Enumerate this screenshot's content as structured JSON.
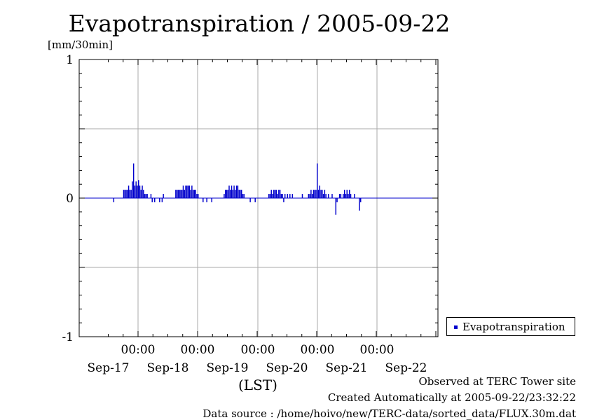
{
  "title": "Evapotranspiration / 2005-09-22",
  "unit": "[mm/30min]",
  "xlabel": "(LST)",
  "legend": {
    "label": "Evapotranspiration",
    "color": "#0000cc"
  },
  "footer": {
    "observed": "Observed at TERC Tower site",
    "created": "Created Automatically at 2005-09-22/23:32:22",
    "source": "Data source : /home/hoivo/new/TERC-data/sorted_data/FLUX.30m.dat"
  },
  "chart_data": {
    "type": "bar",
    "title": "Evapotranspiration / 2005-09-22",
    "ylabel": "[mm/30min]",
    "xlabel": "(LST)",
    "ylim": [
      -1,
      1
    ],
    "yticks": [
      1,
      0,
      -1
    ],
    "grid": true,
    "legend_position": "right",
    "x_start": "2005-09-16 12:00",
    "x_end": "2005-09-22 24:00",
    "x_step_minutes": 30,
    "time_ticks": [
      "00:00",
      "00:00",
      "00:00",
      "00:00",
      "00:00"
    ],
    "date_ticks": [
      "Sep-17",
      "Sep-18",
      "Sep-19",
      "Sep-20",
      "Sep-21",
      "Sep-22"
    ],
    "series": [
      {
        "name": "Evapotranspiration",
        "color": "#0000cc",
        "values": [
          0,
          0,
          0,
          0,
          -0.03,
          0,
          0,
          0,
          0,
          0,
          0,
          0,
          0.06,
          0.06,
          0.06,
          0.06,
          0.09,
          0.06,
          0.06,
          0.12,
          0.25,
          0.09,
          0.12,
          0.09,
          0.13,
          0.09,
          0.06,
          0.09,
          0.06,
          0.03,
          0.03,
          0.03,
          0,
          0,
          0.03,
          -0.03,
          0,
          -0.03,
          0,
          0,
          0,
          -0.03,
          0,
          -0.03,
          0.03,
          0,
          0,
          0,
          0,
          0,
          0,
          0,
          0,
          0,
          0.06,
          0.06,
          0.06,
          0.06,
          0.06,
          0.06,
          0.09,
          0.06,
          0.09,
          0.09,
          0.09,
          0.09,
          0.06,
          0.09,
          0.06,
          0.06,
          0.06,
          0.03,
          0.03,
          0,
          0,
          0,
          -0.03,
          0,
          0,
          -0.03,
          0,
          0,
          0,
          -0.03,
          0,
          0,
          0,
          0,
          0,
          0,
          0,
          0,
          0,
          0.03,
          0.06,
          0.06,
          0.06,
          0.09,
          0.06,
          0.09,
          0.06,
          0.09,
          0.06,
          0.09,
          0.09,
          0.06,
          0.06,
          0.06,
          0.03,
          0.03,
          0,
          0,
          0,
          0,
          -0.03,
          0,
          0,
          0,
          -0.03,
          0,
          0,
          0,
          0,
          0,
          0,
          0,
          0,
          0,
          0,
          0.03,
          0.03,
          0.06,
          0.03,
          0.06,
          0.06,
          0.06,
          0.03,
          0.06,
          0.06,
          0.03,
          0.03,
          -0.03,
          0.03,
          0,
          0.03,
          0,
          0.03,
          0,
          0.03,
          0,
          0,
          0,
          0,
          0,
          0,
          0,
          0.03,
          0,
          0,
          0,
          0,
          0.03,
          0.03,
          0.06,
          0.03,
          0.06,
          0.06,
          0.06,
          0.25,
          0.06,
          0.09,
          0.06,
          0.06,
          0.03,
          0.06,
          0.03,
          0,
          0.03,
          0,
          0,
          0.03,
          0,
          0,
          -0.12,
          -0.03,
          0,
          0.03,
          0.03,
          0,
          0.03,
          0.06,
          0.03,
          0.06,
          0.03,
          0.06,
          0.03,
          0,
          0,
          0.03,
          0,
          0,
          0,
          -0.09,
          -0.03,
          0,
          0,
          0,
          0,
          0,
          0,
          0,
          0
        ]
      }
    ]
  }
}
